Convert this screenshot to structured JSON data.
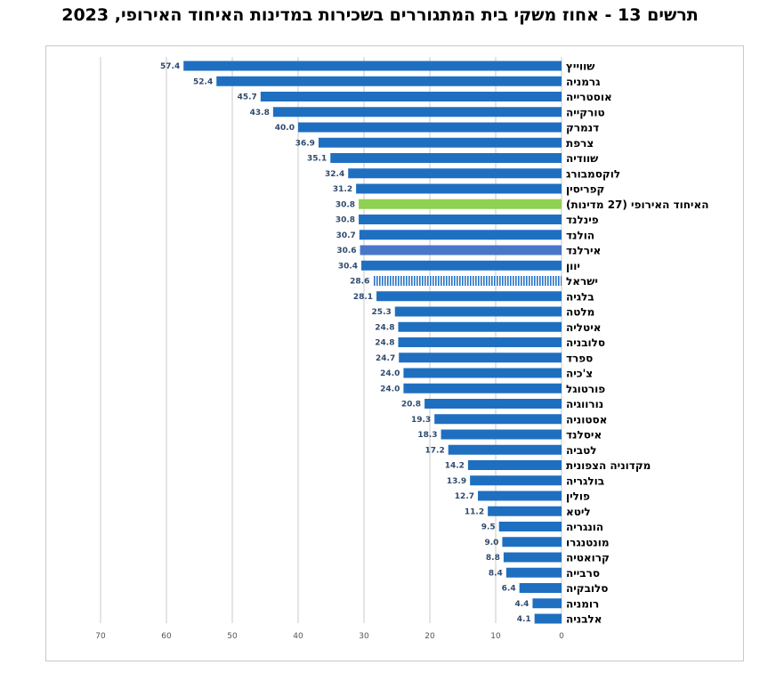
{
  "title": "תרשים 13 - אחוז משקי בית המתגוררים בשכירות במדינות האיחוד האירופי, 2023",
  "colors": {
    "default": "#1f6fc1",
    "eu": "#8fd150",
    "ireland": "#4a76c9",
    "israel": "#2a73c8",
    "grid": "#c8c8c8"
  },
  "chart_data": {
    "type": "bar",
    "orientation": "horizontal",
    "title": "תרשים 13 - אחוז משקי בית המתגוררים בשכירות במדינות האיחוד האירופי, 2023",
    "xlim": [
      0,
      70
    ],
    "x_ticks": [
      "70",
      "60",
      "50",
      "40",
      "30",
      "20",
      "10",
      "0"
    ],
    "x_tick_values": [
      70,
      60,
      50,
      40,
      30,
      20,
      10,
      0
    ],
    "grid": true,
    "categories": [
      "שווייץ",
      "גרמניה",
      "אוסטרייה",
      "טורקייה",
      "דנמרק",
      "צרפת",
      "שוודיה",
      "לוקסמבורג",
      "קפריסין",
      "האיחוד האירופי (27 מדינות)",
      "פינלנד",
      "הולנד",
      "אירלנד",
      "יוון",
      "ישראל",
      "בלגיה",
      "מלטה",
      "איטליה",
      "סלובניה",
      "ספרד",
      "צ'כיה",
      "פורטוגל",
      "נורווגיה",
      "אסטוניה",
      "איסלנד",
      "לטביה",
      "מקדוניה הצפונית",
      "בולגריה",
      "פולין",
      "ליטא",
      "הונגריה",
      "מונטנגרו",
      "קרואטיה",
      "סרבייה",
      "סלובקיה",
      "רומניה",
      "אלבניה"
    ],
    "values": [
      57.4,
      52.4,
      45.7,
      43.8,
      40.0,
      36.9,
      35.1,
      32.4,
      31.2,
      30.8,
      30.8,
      30.7,
      30.6,
      30.4,
      28.6,
      28.1,
      25.3,
      24.8,
      24.8,
      24.7,
      24.0,
      24.0,
      20.8,
      19.3,
      18.3,
      17.2,
      14.2,
      13.9,
      12.7,
      11.2,
      9.5,
      9.0,
      8.8,
      8.4,
      6.4,
      4.4,
      4.1
    ],
    "value_labels": [
      "57.4",
      "52.4",
      "45.7",
      "43.8",
      "40.0",
      "36.9",
      "35.1",
      "32.4",
      "31.2",
      "30.8",
      "30.8",
      "30.7",
      "30.6",
      "30.4",
      "28.6",
      "28.1",
      "25.3",
      "24.8",
      "24.8",
      "24.7",
      "24.0",
      "24.0",
      "20.8",
      "19.3",
      "18.3",
      "17.2",
      "14.2",
      "13.9",
      "12.7",
      "11.2",
      "9.5",
      "9.0",
      "8.8",
      "8.4",
      "6.4",
      "4.4",
      "4.1"
    ],
    "highlight": {
      "האיחוד האירופי (27 מדינות)": "eu",
      "אירלנד": "ireland",
      "ישראל": "israel"
    },
    "hatched": [
      "ישראל"
    ]
  }
}
